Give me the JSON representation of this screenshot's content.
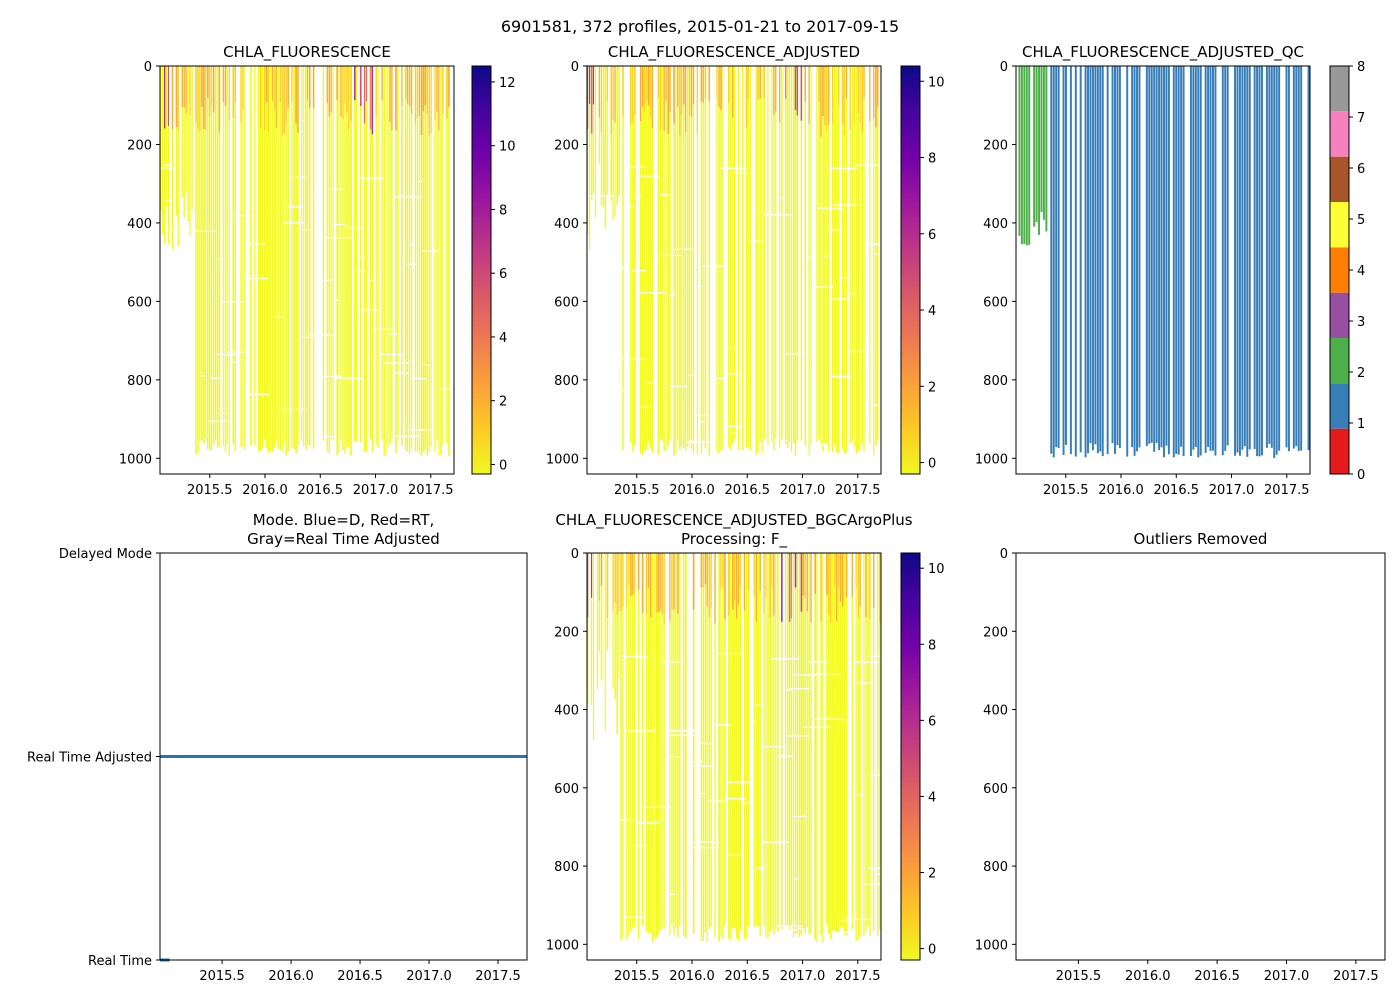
{
  "figure": {
    "suptitle": "6901581, 372 profiles, 2015-01-21 to 2017-09-15"
  },
  "chart_data": [
    {
      "type": "heatmap",
      "title": "CHLA_FLUORESCENCE",
      "xlim": [
        2015.05,
        2017.71
      ],
      "x_ticks": [
        2015.5,
        2016.0,
        2016.5,
        2017.0,
        2017.5
      ],
      "x_tick_labels": [
        "2015.5",
        "2016.0",
        "2016.5",
        "2017.0",
        "2017.5"
      ],
      "ylim": [
        1040,
        0
      ],
      "y_ticks": [
        0,
        200,
        400,
        600,
        800,
        1000
      ],
      "y_tick_labels": [
        "0",
        "200",
        "400",
        "600",
        "800",
        "1000"
      ],
      "colormap": "plasma_r",
      "colorbar": {
        "range": [
          -0.3,
          12.5
        ],
        "ticks": [
          0,
          2,
          4,
          6,
          8,
          10,
          12
        ],
        "tick_labels": [
          "0",
          "2",
          "4",
          "6",
          "8",
          "10",
          "12"
        ]
      }
    },
    {
      "type": "heatmap",
      "title": "CHLA_FLUORESCENCE_ADJUSTED",
      "xlim": [
        2015.05,
        2017.71
      ],
      "x_ticks": [
        2015.5,
        2016.0,
        2016.5,
        2017.0,
        2017.5
      ],
      "x_tick_labels": [
        "2015.5",
        "2016.0",
        "2016.5",
        "2017.0",
        "2017.5"
      ],
      "ylim": [
        1040,
        0
      ],
      "y_ticks": [
        0,
        200,
        400,
        600,
        800,
        1000
      ],
      "y_tick_labels": [
        "0",
        "200",
        "400",
        "600",
        "800",
        "1000"
      ],
      "colormap": "plasma_r",
      "colorbar": {
        "range": [
          -0.3,
          10.4
        ],
        "ticks": [
          0,
          2,
          4,
          6,
          8,
          10
        ],
        "tick_labels": [
          "0",
          "2",
          "4",
          "6",
          "8",
          "10"
        ]
      }
    },
    {
      "type": "heatmap",
      "title": "CHLA_FLUORESCENCE_ADJUSTED_QC",
      "xlim": [
        2015.05,
        2017.71
      ],
      "x_ticks": [
        2015.5,
        2016.0,
        2016.5,
        2017.0,
        2017.5
      ],
      "x_tick_labels": [
        "2015.5",
        "2016.0",
        "2016.5",
        "2017.0",
        "2017.5"
      ],
      "ylim": [
        1040,
        0
      ],
      "y_ticks": [
        0,
        200,
        400,
        600,
        800,
        1000
      ],
      "y_tick_labels": [
        "0",
        "200",
        "400",
        "600",
        "800",
        "1000"
      ],
      "qc_flag_dominant": [
        {
          "x_range": [
            2015.05,
            2015.34
          ],
          "flag": 2
        },
        {
          "x_range": [
            2015.34,
            2017.71
          ],
          "flag": 1
        }
      ],
      "colorbar": {
        "range": [
          0,
          8
        ],
        "ticks": [
          0,
          1,
          2,
          3,
          4,
          5,
          6,
          7,
          8
        ],
        "tick_labels": [
          "0",
          "1",
          "2",
          "3",
          "4",
          "5",
          "6",
          "7",
          "8"
        ],
        "colors": [
          "#e41a1c",
          "#377eb8",
          "#4daf4a",
          "#984ea3",
          "#ff7f00",
          "#ffff33",
          "#a65628",
          "#f781bf",
          "#999999"
        ]
      }
    },
    {
      "type": "line",
      "title": "Mode. Blue=D, Red=RT,\nGray=Real Time Adjusted",
      "title_lines": [
        "Mode. Blue=D, Red=RT,",
        "Gray=Real Time Adjusted"
      ],
      "xlim": [
        2015.05,
        2017.71
      ],
      "x_ticks": [
        2015.5,
        2016.0,
        2016.5,
        2017.0,
        2017.5
      ],
      "x_tick_labels": [
        "2015.5",
        "2016.0",
        "2016.5",
        "2017.0",
        "2017.5"
      ],
      "y_categories": [
        "Real Time",
        "Real Time Adjusted",
        "Delayed Mode"
      ],
      "series": [
        {
          "name": "Real Time",
          "x": [
            2015.05,
            2015.12
          ],
          "y": [
            0,
            0
          ],
          "color": "#1f77b4"
        },
        {
          "name": "Real Time Adjusted",
          "x": [
            2015.05,
            2017.71
          ],
          "y": [
            1,
            1
          ],
          "color": "#1f77b4"
        }
      ]
    },
    {
      "type": "heatmap",
      "title": "CHLA_FLUORESCENCE_ADJUSTED_BGCArgoPlus\nProcessing: F_",
      "title_lines": [
        "CHLA_FLUORESCENCE_ADJUSTED_BGCArgoPlus",
        "Processing: F_"
      ],
      "xlim": [
        2015.05,
        2017.71
      ],
      "x_ticks": [
        2015.5,
        2016.0,
        2016.5,
        2017.0,
        2017.5
      ],
      "x_tick_labels": [
        "2015.5",
        "2016.0",
        "2016.5",
        "2017.0",
        "2017.5"
      ],
      "ylim": [
        1040,
        0
      ],
      "y_ticks": [
        0,
        200,
        400,
        600,
        800,
        1000
      ],
      "y_tick_labels": [
        "0",
        "200",
        "400",
        "600",
        "800",
        "1000"
      ],
      "colormap": "plasma_r",
      "colorbar": {
        "range": [
          -0.3,
          10.4
        ],
        "ticks": [
          0,
          2,
          4,
          6,
          8,
          10
        ],
        "tick_labels": [
          "0",
          "2",
          "4",
          "6",
          "8",
          "10"
        ]
      }
    },
    {
      "type": "scatter",
      "title": "Outliers Removed",
      "xlim": [
        2015.05,
        2017.71
      ],
      "x_ticks": [
        2015.5,
        2016.0,
        2016.5,
        2017.0,
        2017.5
      ],
      "x_tick_labels": [
        "2015.5",
        "2016.0",
        "2016.5",
        "2017.0",
        "2017.5"
      ],
      "ylim": [
        1040,
        0
      ],
      "y_ticks": [
        0,
        200,
        400,
        600,
        800,
        1000
      ],
      "y_tick_labels": [
        "0",
        "200",
        "400",
        "600",
        "800",
        "1000"
      ],
      "points": []
    }
  ]
}
